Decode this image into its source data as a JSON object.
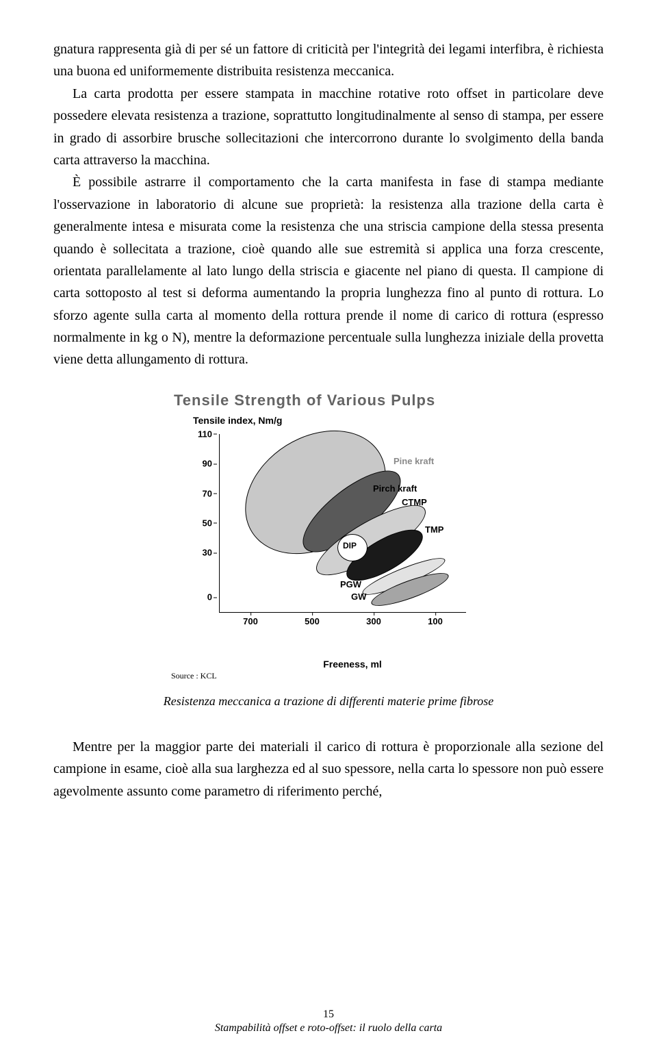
{
  "paragraphs": {
    "p1": "gnatura rappresenta già di per sé un fattore di criticità per l'integrità dei legami interfibra, è richiesta una buona ed uniformemente distribuita resistenza meccanica.",
    "p2": "La carta prodotta per essere stampata in macchine rotative roto offset in particolare deve possedere elevata resistenza a trazione, soprattutto longitudinalmente al senso di stampa, per essere in grado di assorbire brusche sollecitazioni che intercorrono durante lo svolgimento della banda carta attraverso la macchina.",
    "p3": "È possibile astrarre il comportamento che la carta manifesta in fase di stampa mediante l'osservazione in laboratorio di alcune sue proprietà: la resistenza alla trazione della carta è generalmente intesa e misurata come la resistenza che una striscia campione della stessa presenta quando è sollecitata a trazione, cioè quando alle sue estremità si applica una forza crescente, orientata parallelamente al lato lungo della striscia e giacente nel piano di questa. Il campione di carta sottoposto al test si deforma aumentando la propria lunghezza fino al punto di rottura. Lo sforzo agente sulla carta al momento della rottura prende il nome di carico di rottura (espresso normalmente in kg o N), mentre la deformazione percentuale sulla lunghezza iniziale della provetta viene detta allungamento di rottura.",
    "p4": "Mentre per la maggior parte dei materiali il carico di rottura è proporzionale alla sezione del campione in esame, cioè alla sua larghezza ed al suo spessore, nella carta lo spessore non può essere agevolmente assunto come parametro di riferimento perché,"
  },
  "chart": {
    "title": "Tensile Strength of Various Pulps",
    "y_axis_title": "Tensile index, Nm/g",
    "x_axis_title": "Freeness, ml",
    "source": "Source : KCL",
    "ylim": [
      -10,
      110
    ],
    "xlim": [
      800,
      0
    ],
    "yticks": [
      0,
      30,
      50,
      70,
      90,
      110
    ],
    "xticks": [
      700,
      500,
      300,
      100
    ],
    "series_labels": {
      "pine_kraft": "Pine kraft",
      "pirch_kraft": "Pirch kraft",
      "ctmp": "CTMP",
      "tmp": "TMP",
      "dip": "DIP",
      "pgw": "PGW",
      "gw": "GW"
    },
    "colors": {
      "pine_kraft": "#c8c8c8",
      "pirch_kraft": "#595959",
      "ctmp": "#d0d0d0",
      "tmp": "#1a1a1a",
      "dip": "#ffffff",
      "pgw": "#e2e2e2",
      "gw": "#a5a5a5",
      "label_grey": "#8a8a8a",
      "label_black": "#000000",
      "border": "#000000"
    }
  },
  "caption": "Resistenza meccanica a trazione di differenti materie prime fibrose",
  "footer": {
    "page": "15",
    "title": "Stampabilità offset e roto-offset: il ruolo della carta"
  }
}
